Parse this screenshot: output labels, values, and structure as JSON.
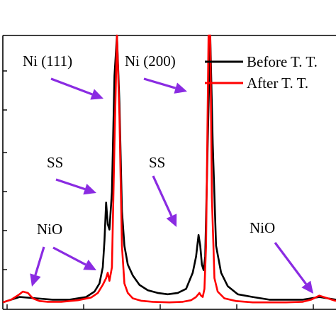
{
  "chart_data": {
    "type": "line",
    "title": "",
    "xlabel": "",
    "ylabel": "",
    "note": "Partial view: axis tick labels are cropped out of the screenshot; x/y in arbitrary 2θ-like and intensity units.",
    "xlim": [
      37.5,
      57.5
    ],
    "ylim": [
      0,
      100
    ],
    "legend_position": "top-right",
    "series": [
      {
        "name": "Before T. T.",
        "color": "#000000",
        "x": [
          37.5,
          38.5,
          39.5,
          40.5,
          41.5,
          42.5,
          43.0,
          43.3,
          43.5,
          43.6,
          43.7,
          43.8,
          43.9,
          44.05,
          44.2,
          44.35,
          44.5,
          44.65,
          44.8,
          45.0,
          45.3,
          45.7,
          46.2,
          46.8,
          47.4,
          48.0,
          48.5,
          48.9,
          49.1,
          49.25,
          49.35,
          49.45,
          49.55,
          49.65,
          49.8,
          49.95,
          50.1,
          50.3,
          50.6,
          51.0,
          51.6,
          52.5,
          53.5,
          54.5,
          55.5,
          56.0,
          56.5,
          57.0,
          57.5
        ],
        "y": [
          1.0,
          3.0,
          2.5,
          2.0,
          2.0,
          3.0,
          5.0,
          8.0,
          14.0,
          24.0,
          38.0,
          30.0,
          28.0,
          42.0,
          85.0,
          100.0,
          75.0,
          35.0,
          22.0,
          15.0,
          11.0,
          7.5,
          5.5,
          4.5,
          4.0,
          4.5,
          6.0,
          12.0,
          18.0,
          26.0,
          22.0,
          15.0,
          13.0,
          18.0,
          60.0,
          100.0,
          60.0,
          22.0,
          12.0,
          7.0,
          4.0,
          3.0,
          2.0,
          2.0,
          2.0,
          2.5,
          3.0,
          2.5,
          2.0
        ]
      },
      {
        "name": "After T. T.",
        "color": "#ff0000",
        "x": [
          37.5,
          38.0,
          38.5,
          38.7,
          39.0,
          39.3,
          39.7,
          40.2,
          41.0,
          42.0,
          42.8,
          43.2,
          43.5,
          43.7,
          43.8,
          43.9,
          44.05,
          44.2,
          44.35,
          44.5,
          44.65,
          44.8,
          45.0,
          45.3,
          45.8,
          46.5,
          47.5,
          48.3,
          48.8,
          49.1,
          49.3,
          49.4,
          49.5,
          49.6,
          49.7,
          49.85,
          49.95,
          50.05,
          50.2,
          50.4,
          50.8,
          51.5,
          52.5,
          53.5,
          54.5,
          55.5,
          56.0,
          56.5,
          57.0,
          57.5
        ],
        "y": [
          1.0,
          2.0,
          4.0,
          5.0,
          4.5,
          2.5,
          1.5,
          1.2,
          1.2,
          1.8,
          2.8,
          4.5,
          7.5,
          10.0,
          12.0,
          9.0,
          14.0,
          60.0,
          100.0,
          70.0,
          22.0,
          8.0,
          4.5,
          2.5,
          1.6,
          1.2,
          1.0,
          1.2,
          1.8,
          3.0,
          4.5,
          3.5,
          3.0,
          6.0,
          22.0,
          100.0,
          100.0,
          40.0,
          10.0,
          5.0,
          2.5,
          1.5,
          1.0,
          1.0,
          1.0,
          1.2,
          2.0,
          3.5,
          2.5,
          1.5
        ]
      }
    ],
    "annotations": [
      {
        "text": "Ni (111)"
      },
      {
        "text": "Ni (200)"
      },
      {
        "text": "SS"
      },
      {
        "text": "SS"
      },
      {
        "text": "NiO"
      },
      {
        "text": "NiO"
      }
    ]
  },
  "colors": {
    "before": "#000000",
    "after": "#ff0000",
    "arrow": "#8a2be2"
  }
}
